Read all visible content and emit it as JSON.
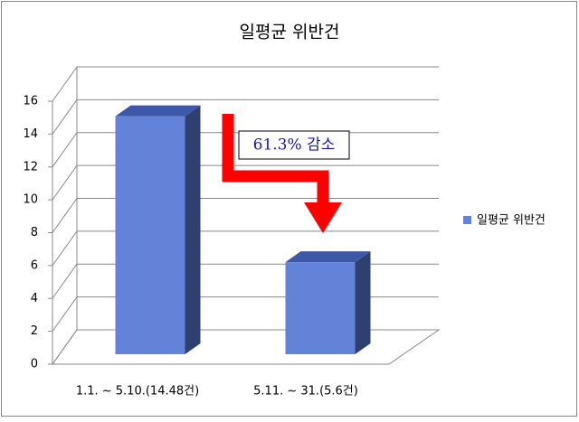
{
  "chart_data": {
    "type": "bar3d",
    "title": "일평균 위반건",
    "categories": [
      "1.1. ~ 5.10.(14.48건)",
      "5.11. ~ 31.(5.6건)"
    ],
    "series": [
      {
        "name": "일평균 위반건",
        "color": "#6283d7",
        "values": [
          14.48,
          5.6
        ]
      }
    ],
    "ylim": [
      0,
      16
    ],
    "yticks": [
      0,
      2,
      4,
      6,
      8,
      10,
      12,
      14,
      16
    ],
    "grid": true,
    "legend": "right",
    "annotation": "61.3% 감소"
  }
}
